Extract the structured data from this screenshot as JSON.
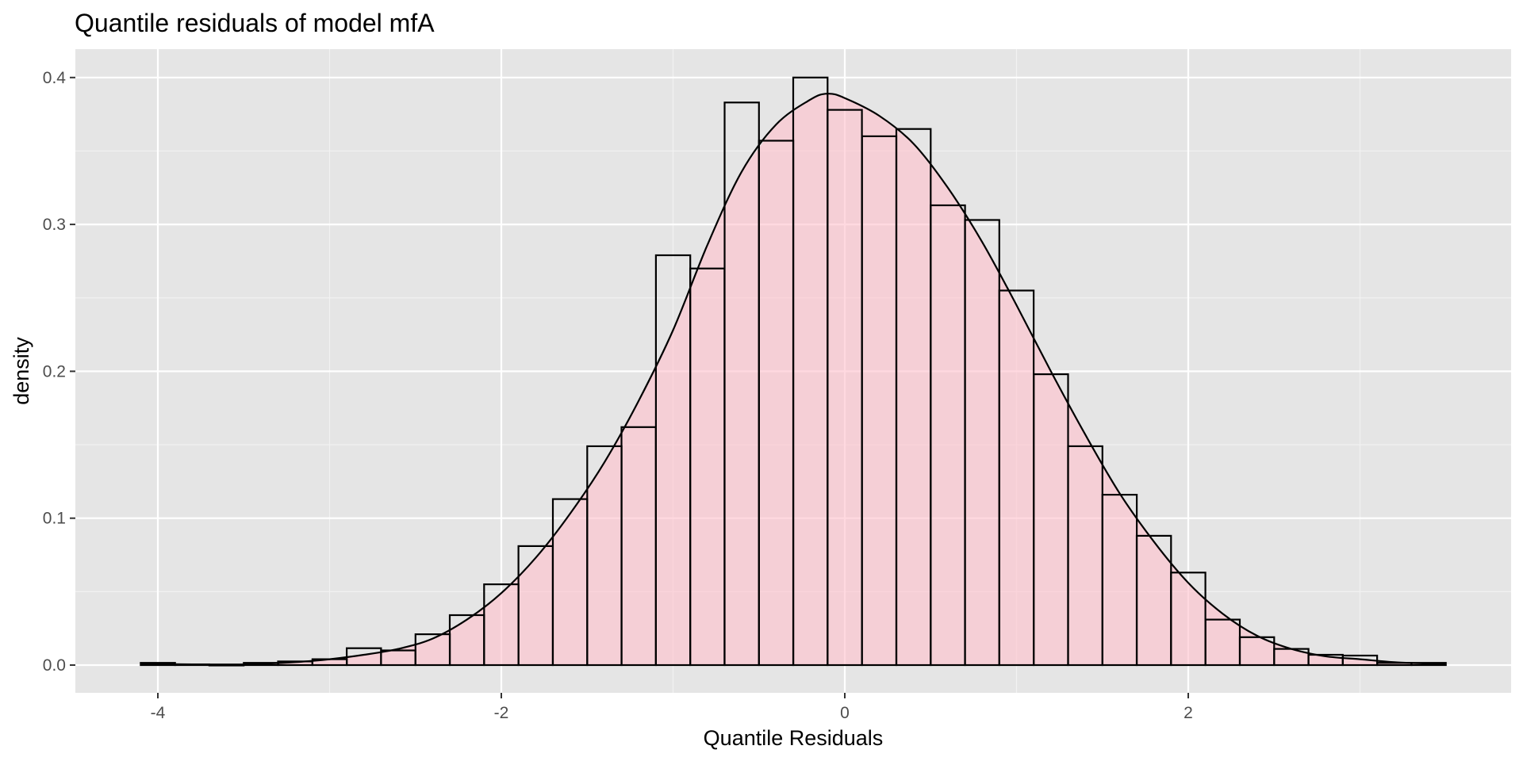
{
  "chart_data": {
    "type": "bar",
    "title": "Quantile residuals of model mfA",
    "xlabel": "Quantile Residuals",
    "ylabel": "density",
    "xlim": [
      -4.5,
      3.85
    ],
    "ylim": [
      -0.02,
      0.42
    ],
    "x_ticks": [
      -4,
      -2,
      0,
      2
    ],
    "x_tick_labels": [
      "-4",
      "-2",
      "0",
      "2"
    ],
    "y_ticks": [
      0.0,
      0.1,
      0.2,
      0.3,
      0.4
    ],
    "y_tick_labels": [
      "0.0",
      "0.1",
      "0.2",
      "0.3",
      "0.4"
    ],
    "grid": true,
    "background_color": "#e5e5e5",
    "fill_color": "#ffc0cb",
    "line_color": "#000000",
    "histogram": {
      "bin_width": 0.2,
      "bin_centers": [
        -4.0,
        -3.8,
        -3.6,
        -3.4,
        -3.2,
        -3.0,
        -2.8,
        -2.6,
        -2.4,
        -2.2,
        -2.0,
        -1.8,
        -1.6,
        -1.4,
        -1.2,
        -1.0,
        -0.8,
        -0.6,
        -0.4,
        -0.2,
        0.0,
        0.2,
        0.4,
        0.6,
        0.8,
        1.0,
        1.2,
        1.4,
        1.6,
        1.8,
        2.0,
        2.2,
        2.4,
        2.6,
        2.8,
        3.0,
        3.2,
        3.4
      ],
      "densities": [
        0.0015,
        0.0005,
        0.0,
        0.0015,
        0.0025,
        0.004,
        0.0115,
        0.01,
        0.021,
        0.034,
        0.055,
        0.081,
        0.113,
        0.149,
        0.162,
        0.279,
        0.27,
        0.383,
        0.357,
        0.4,
        0.378,
        0.36,
        0.365,
        0.313,
        0.303,
        0.255,
        0.198,
        0.149,
        0.116,
        0.088,
        0.063,
        0.031,
        0.019,
        0.011,
        0.007,
        0.0065,
        0.0015,
        0.0015
      ]
    },
    "density_curve": {
      "x": [
        -4.1,
        -3.8,
        -3.5,
        -3.2,
        -3.0,
        -2.8,
        -2.6,
        -2.4,
        -2.2,
        -2.0,
        -1.8,
        -1.6,
        -1.4,
        -1.2,
        -1.0,
        -0.8,
        -0.6,
        -0.4,
        -0.2,
        -0.1,
        0.0,
        0.2,
        0.4,
        0.6,
        0.8,
        1.0,
        1.2,
        1.4,
        1.6,
        1.8,
        2.0,
        2.2,
        2.4,
        2.6,
        2.8,
        3.0,
        3.2,
        3.5
      ],
      "y": [
        0.001,
        0.0005,
        0.0005,
        0.002,
        0.004,
        0.007,
        0.011,
        0.018,
        0.031,
        0.049,
        0.073,
        0.103,
        0.138,
        0.18,
        0.228,
        0.286,
        0.336,
        0.368,
        0.385,
        0.389,
        0.386,
        0.374,
        0.355,
        0.325,
        0.288,
        0.245,
        0.2,
        0.157,
        0.117,
        0.084,
        0.056,
        0.035,
        0.02,
        0.011,
        0.006,
        0.004,
        0.002,
        0.0005
      ]
    }
  }
}
